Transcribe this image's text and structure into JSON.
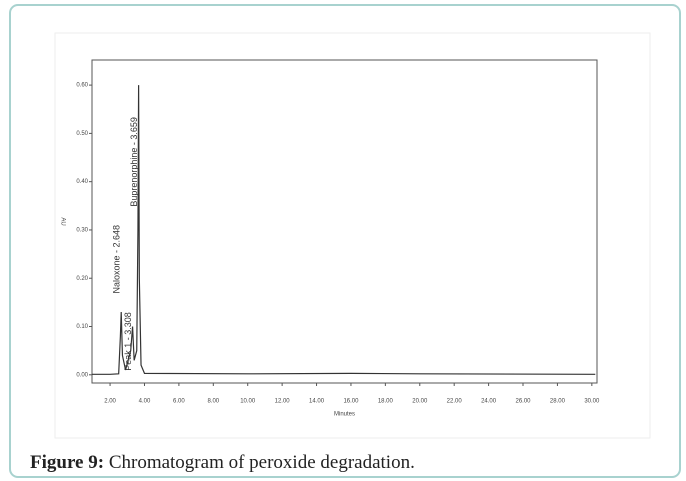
{
  "chart_data": {
    "type": "line",
    "xlabel": "Minutes",
    "ylabel": "AU",
    "x": [
      0.95,
      2.0,
      2.5,
      2.6,
      2.648,
      2.72,
      2.9,
      3.2,
      3.308,
      3.4,
      3.55,
      3.62,
      3.659,
      3.7,
      3.8,
      4.0,
      10,
      16,
      20,
      30.2
    ],
    "series": [
      {
        "color": "#333333",
        "values": [
          0.001,
          0.001,
          0.002,
          0.08,
          0.13,
          0.04,
          0.01,
          0.05,
          0.1,
          0.03,
          0.05,
          0.3,
          0.6,
          0.2,
          0.02,
          0.003,
          0.002,
          0.003,
          0.002,
          0.001
        ]
      }
    ],
    "xlim": [
      0.95,
      30.3
    ],
    "ylim": [
      -0.017,
      0.652
    ],
    "xticks": [
      {
        "value": 2,
        "label": "2.00"
      },
      {
        "value": 4,
        "label": "4.00"
      },
      {
        "value": 6,
        "label": "6.00"
      },
      {
        "value": 8,
        "label": "8.00"
      },
      {
        "value": 10,
        "label": "10.00"
      },
      {
        "value": 12,
        "label": "12.00"
      },
      {
        "value": 14,
        "label": "14.00"
      },
      {
        "value": 16,
        "label": "16.00"
      },
      {
        "value": 18,
        "label": "18.00"
      },
      {
        "value": 20,
        "label": "20.00"
      },
      {
        "value": 22,
        "label": "22.00"
      },
      {
        "value": 24,
        "label": "24.00"
      },
      {
        "value": 26,
        "label": "26.00"
      },
      {
        "value": 28,
        "label": "28.00"
      },
      {
        "value": 30,
        "label": "30.00"
      }
    ],
    "yticks": [
      {
        "value": 0,
        "label": "0.00"
      },
      {
        "value": 0.1,
        "label": "0.10"
      },
      {
        "value": 0.2,
        "label": "0.20"
      },
      {
        "value": 0.3,
        "label": "0.30"
      },
      {
        "value": 0.4,
        "label": "0.40"
      },
      {
        "value": 0.5,
        "label": "0.50"
      },
      {
        "value": 0.6,
        "label": "0.60"
      }
    ],
    "annotations": [
      {
        "text": "Naloxone - 2.648",
        "x": 2.648,
        "y": 0.16
      },
      {
        "text": "Peak 1 - 3.308",
        "x": 3.308,
        "y": 0.0
      },
      {
        "text": "Buprenorphine - 3.659",
        "x": 3.659,
        "y": 0.34
      }
    ]
  },
  "caption": {
    "label": "Figure 9:",
    "text": "Chromatogram of peroxide degradation."
  }
}
